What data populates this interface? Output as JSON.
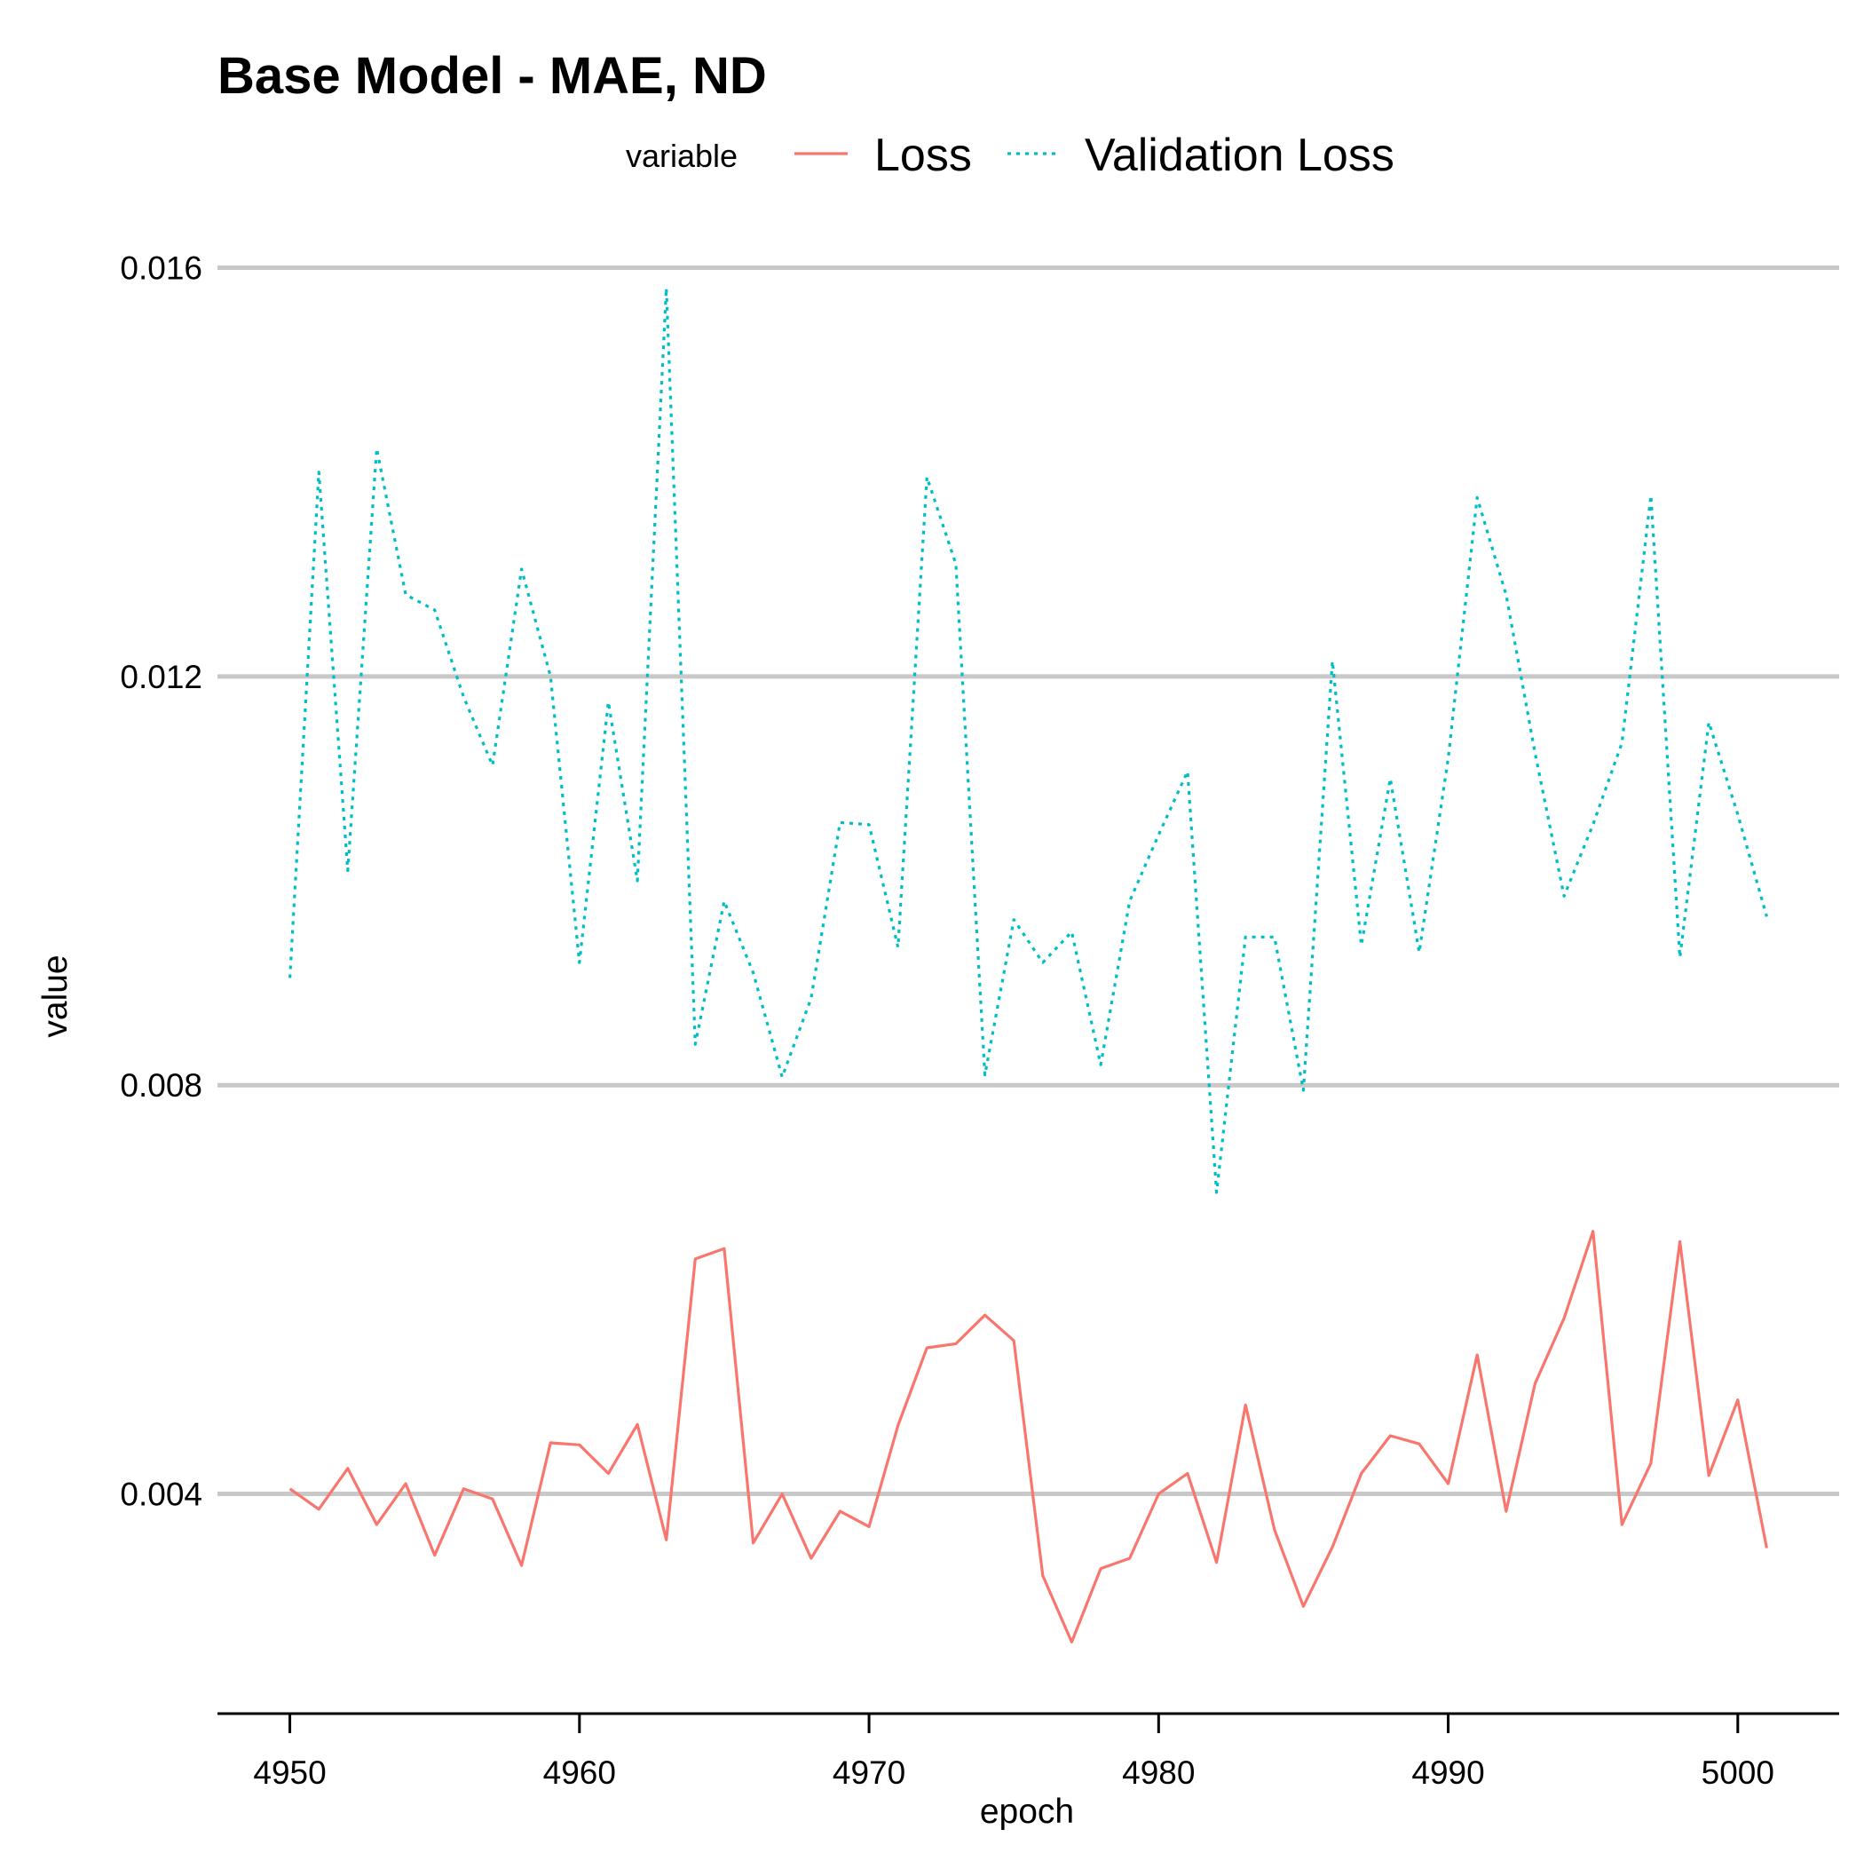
{
  "chart_data": {
    "type": "line",
    "title": "Base Model - MAE, ND",
    "xlabel": "epoch",
    "ylabel": "value",
    "xlim": [
      4947.5,
      5003.5
    ],
    "ylim": [
      0.00185,
      0.01643
    ],
    "x_ticks": [
      4950,
      4960,
      4970,
      4980,
      4990,
      5000
    ],
    "x_tick_labels": [
      "4950",
      "4960",
      "4970",
      "4980",
      "4990",
      "5000"
    ],
    "y_ticks": [
      0.004,
      0.008,
      0.012,
      0.016
    ],
    "y_tick_labels": [
      "0.004",
      "0.008",
      "0.012",
      "0.016"
    ],
    "grid": "horizontal major",
    "legend": {
      "title": "variable",
      "position": "top",
      "entries": [
        "Loss",
        "Validation Loss"
      ]
    },
    "x": [
      4950,
      4951,
      4952,
      4953,
      4954,
      4955,
      4956,
      4957,
      4958,
      4959,
      4960,
      4961,
      4962,
      4963,
      4964,
      4965,
      4966,
      4967,
      4968,
      4969,
      4970,
      4971,
      4972,
      4973,
      4974,
      4975,
      4976,
      4977,
      4978,
      4979,
      4980,
      4981,
      4982,
      4983,
      4984,
      4985,
      4986,
      4987,
      4988,
      4989,
      4990,
      4991,
      4992,
      4993,
      4994,
      4995,
      4996,
      4997,
      4998,
      4999,
      5000,
      5001
    ],
    "series": [
      {
        "name": "Loss",
        "color": "#F8766D",
        "linestyle": "solid",
        "values": [
          0.00405,
          0.00385,
          0.00425,
          0.0037,
          0.0041,
          0.0034,
          0.00405,
          0.00395,
          0.0033,
          0.0045,
          0.00448,
          0.0042,
          0.00468,
          0.00355,
          0.0063,
          0.0064,
          0.00352,
          0.004,
          0.00337,
          0.00383,
          0.00368,
          0.00467,
          0.00543,
          0.00547,
          0.00575,
          0.0055,
          0.0032,
          0.00255,
          0.00327,
          0.00337,
          0.004,
          0.0042,
          0.00333,
          0.00487,
          0.00365,
          0.0029,
          0.00348,
          0.0042,
          0.00457,
          0.00449,
          0.0041,
          0.00536,
          0.00383,
          0.00508,
          0.00572,
          0.00657,
          0.0037,
          0.0043,
          0.00647,
          0.00418,
          0.00492,
          0.00347
        ]
      },
      {
        "name": "Validation Loss",
        "color": "#00BFC4",
        "linestyle": "dotted",
        "values": [
          0.00905,
          0.014,
          0.0101,
          0.01423,
          0.0128,
          0.01265,
          0.0118,
          0.01113,
          0.01305,
          0.012,
          0.0092,
          0.01175,
          0.01,
          0.0158,
          0.0084,
          0.0098,
          0.0091,
          0.00808,
          0.00885,
          0.01057,
          0.01055,
          0.00935,
          0.01395,
          0.0131,
          0.0081,
          0.00962,
          0.0092,
          0.0095,
          0.0082,
          0.0098,
          0.01045,
          0.01107,
          0.00695,
          0.00945,
          0.00945,
          0.00795,
          0.01215,
          0.00937,
          0.011,
          0.0093,
          0.0112,
          0.01375,
          0.0128,
          0.01125,
          0.00985,
          0.01055,
          0.01135,
          0.01377,
          0.00925,
          0.01155,
          0.01065,
          0.00965
        ]
      }
    ]
  }
}
